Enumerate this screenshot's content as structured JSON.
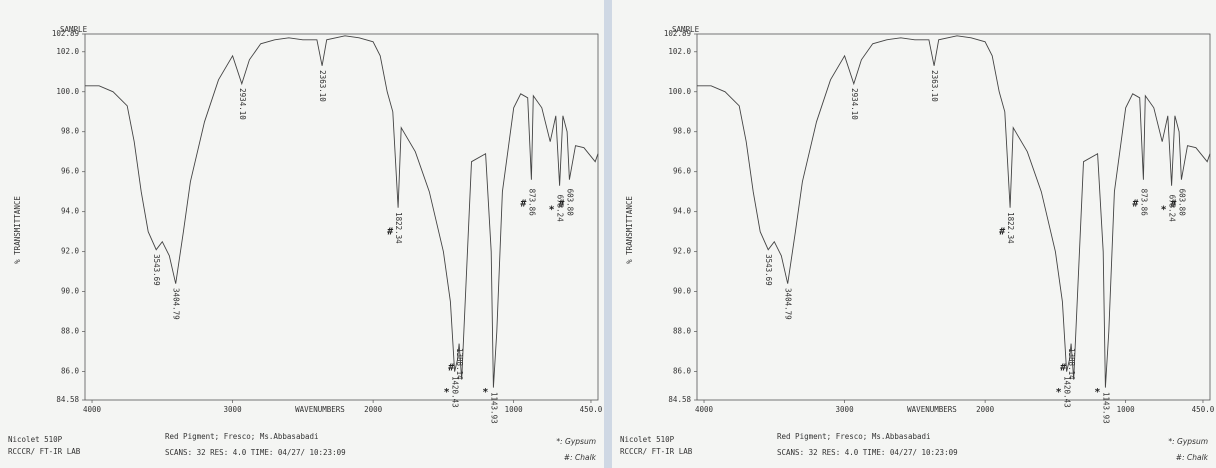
{
  "chart_data": [
    {
      "type": "line",
      "title": "SAMPLE",
      "x_label": "WAVENUMBERS",
      "y_label": "% TRANSMITTANCE",
      "xlim": [
        4050,
        400
      ],
      "ylim": [
        84.58,
        102.89
      ],
      "xticks": [
        4000,
        3000,
        2000,
        1000,
        {
          "value": 450,
          "label": "450.0"
        }
      ],
      "yticks": [
        84.58,
        {
          "value": 86,
          "label": "86.0"
        },
        {
          "value": 88,
          "label": "88.0"
        },
        {
          "value": 90,
          "label": "90.0"
        },
        {
          "value": 92,
          "label": "92.0"
        },
        {
          "value": 94,
          "label": "94.0"
        },
        {
          "value": 96,
          "label": "96.0"
        },
        {
          "value": 98,
          "label": "98.0"
        },
        {
          "value": 100,
          "label": "100.0"
        },
        {
          "value": 102,
          "label": "102.0"
        },
        102.89
      ],
      "color": "#444444",
      "x": [
        4050,
        3950,
        3850,
        3750,
        3700,
        3650,
        3600,
        3543.69,
        3500,
        3450,
        3404.79,
        3350,
        3300,
        3200,
        3100,
        3000,
        2934.1,
        2880,
        2800,
        2700,
        2600,
        2500,
        2400,
        2363.1,
        2330,
        2200,
        2100,
        2000,
        1950,
        1900,
        1860,
        1822.34,
        1800,
        1700,
        1600,
        1500,
        1450,
        1420.43,
        1400,
        1388.14,
        1370,
        1300,
        1200,
        1160,
        1143.93,
        1120,
        1080,
        1000,
        950,
        900,
        873.86,
        860,
        800,
        740,
        700,
        673.24,
        650,
        620,
        603.8,
        560,
        500,
        420,
        400
      ],
      "values": [
        100.3,
        100.3,
        100.0,
        99.3,
        97.5,
        95.0,
        93.0,
        92.1,
        92.5,
        91.8,
        90.4,
        93.0,
        95.5,
        98.5,
        100.6,
        101.8,
        100.4,
        101.6,
        102.4,
        102.6,
        102.7,
        102.6,
        102.6,
        101.3,
        102.6,
        102.8,
        102.7,
        102.5,
        101.8,
        100.0,
        99.0,
        94.2,
        98.2,
        97.0,
        95.0,
        92.0,
        89.5,
        86.0,
        86.6,
        87.4,
        85.6,
        96.5,
        96.9,
        92.0,
        85.2,
        88.0,
        95.0,
        99.2,
        99.9,
        99.7,
        95.6,
        99.8,
        99.2,
        97.5,
        98.8,
        95.3,
        98.8,
        98.0,
        95.6,
        97.3,
        97.2,
        96.5,
        96.9
      ],
      "peaks": {
        "x": [
          3543.69,
          3404.79,
          2934.1,
          2363.1,
          1822.34,
          1420.43,
          1388.14,
          1143.93,
          873.86,
          673.24,
          603.8
        ],
        "values": [
          92.1,
          90.4,
          100.4,
          101.3,
          94.2,
          86.0,
          87.4,
          85.2,
          95.6,
          95.3,
          95.6
        ],
        "labels": [
          "3543.69",
          "3404.79",
          "2934.10",
          "2363.10",
          "1822.34",
          "1420.43",
          "1388.14",
          "1143.93",
          "873.86",
          "673.24",
          "603.80"
        ],
        "markers": [
          null,
          null,
          null,
          null,
          "#",
          "*",
          "#",
          "*",
          "#",
          "*",
          "#"
        ]
      },
      "footer": {
        "instrument": "Nicolet 510P",
        "lab": "RCCCR/ FT-IR LAB",
        "sample": "Red Pigment; Fresco; Ms.Abbasabadi",
        "scan_info": "SCANS:   32 RES: 4.0 TIME:   04/27/ 10:23:09",
        "legend": [
          "*: Gypsum",
          "#: Chalk"
        ]
      }
    },
    {
      "type": "line",
      "title": "SAMPLE",
      "x_label": "WAVENUMBERS",
      "y_label": "% TRANSMITTANCE",
      "xlim": [
        4050,
        400
      ],
      "ylim": [
        84.58,
        102.89
      ],
      "xticks": [
        4000,
        3000,
        2000,
        1000,
        {
          "value": 450,
          "label": "450.0"
        }
      ],
      "yticks": [
        84.58,
        {
          "value": 86,
          "label": "86.0"
        },
        {
          "value": 88,
          "label": "88.0"
        },
        {
          "value": 90,
          "label": "90.0"
        },
        {
          "value": 92,
          "label": "92.0"
        },
        {
          "value": 94,
          "label": "94.0"
        },
        {
          "value": 96,
          "label": "96.0"
        },
        {
          "value": 98,
          "label": "98.0"
        },
        {
          "value": 100,
          "label": "100.0"
        },
        {
          "value": 102,
          "label": "102.0"
        },
        102.89
      ],
      "color": "#444444",
      "x": [
        4050,
        3950,
        3850,
        3750,
        3700,
        3650,
        3600,
        3543.69,
        3500,
        3450,
        3404.79,
        3350,
        3300,
        3200,
        3100,
        3000,
        2934.1,
        2880,
        2800,
        2700,
        2600,
        2500,
        2400,
        2363.1,
        2330,
        2200,
        2100,
        2000,
        1950,
        1900,
        1860,
        1822.34,
        1800,
        1700,
        1600,
        1500,
        1450,
        1420.43,
        1400,
        1388.14,
        1370,
        1300,
        1200,
        1160,
        1143.93,
        1120,
        1080,
        1000,
        950,
        900,
        873.86,
        860,
        800,
        740,
        700,
        673.24,
        650,
        620,
        603.8,
        560,
        500,
        420,
        400
      ],
      "values": [
        100.3,
        100.3,
        100.0,
        99.3,
        97.5,
        95.0,
        93.0,
        92.1,
        92.5,
        91.8,
        90.4,
        93.0,
        95.5,
        98.5,
        100.6,
        101.8,
        100.4,
        101.6,
        102.4,
        102.6,
        102.7,
        102.6,
        102.6,
        101.3,
        102.6,
        102.8,
        102.7,
        102.5,
        101.8,
        100.0,
        99.0,
        94.2,
        98.2,
        97.0,
        95.0,
        92.0,
        89.5,
        86.0,
        86.6,
        87.4,
        85.6,
        96.5,
        96.9,
        92.0,
        85.2,
        88.0,
        95.0,
        99.2,
        99.9,
        99.7,
        95.6,
        99.8,
        99.2,
        97.5,
        98.8,
        95.3,
        98.8,
        98.0,
        95.6,
        97.3,
        97.2,
        96.5,
        96.9
      ],
      "peaks": {
        "x": [
          3543.69,
          3404.79,
          2934.1,
          2363.1,
          1822.34,
          1420.43,
          1388.14,
          1143.93,
          873.86,
          673.24,
          603.8
        ],
        "values": [
          92.1,
          90.4,
          100.4,
          101.3,
          94.2,
          86.0,
          87.4,
          85.2,
          95.6,
          95.3,
          95.6
        ],
        "labels": [
          "3543.69",
          "3404.79",
          "2934.10",
          "2363.10",
          "1822.34",
          "1420.43",
          "1388.14",
          "1143.93",
          "873.86",
          "673.24",
          "603.80"
        ],
        "markers": [
          null,
          null,
          null,
          null,
          "#",
          "*",
          "#",
          "*",
          "#",
          "*",
          "#"
        ]
      },
      "footer": {
        "instrument": "Nicolet 510P",
        "lab": "RCCCR/ FT-IR LAB",
        "sample": "Red Pigment; Fresco; Ms.Abbasabadi",
        "scan_info": "SCANS:   32 RES: 4.0 TIME:   04/27/ 10:23:09",
        "legend": [
          "*: Gypsum",
          "#: Chalk"
        ]
      }
    }
  ]
}
